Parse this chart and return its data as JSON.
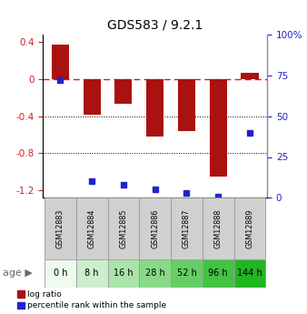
{
  "title": "GDS583 / 9.2.1",
  "samples": [
    "GSM12883",
    "GSM12884",
    "GSM12885",
    "GSM12886",
    "GSM12887",
    "GSM12888",
    "GSM12889"
  ],
  "ages": [
    "0 h",
    "8 h",
    "16 h",
    "28 h",
    "52 h",
    "96 h",
    "144 h"
  ],
  "log_ratio": [
    0.37,
    -0.38,
    -0.27,
    -0.62,
    -0.56,
    -1.05,
    0.07
  ],
  "percentile_rank": [
    72,
    10,
    8,
    5,
    3,
    1,
    40
  ],
  "bar_color": "#aa1111",
  "dot_color": "#2222cc",
  "dashed_color": "#cc2222",
  "left_axis_color": "#cc2222",
  "right_axis_color": "#2222cc",
  "ylim_left": [
    -1.28,
    0.48
  ],
  "ylim_right": [
    0,
    100
  ],
  "yticks_left": [
    0.4,
    0.0,
    -0.4,
    -0.8,
    -1.2
  ],
  "yticks_right": [
    100,
    75,
    50,
    25,
    0
  ],
  "age_facecolors": [
    "#edfaed",
    "#d4f0d4",
    "#bbebb b",
    "#a2e6a2",
    "#80d880",
    "#5eca5e",
    "#3dbc3d"
  ],
  "sample_bg": "#d0d0d0",
  "background": "#ffffff",
  "bar_width": 0.55
}
